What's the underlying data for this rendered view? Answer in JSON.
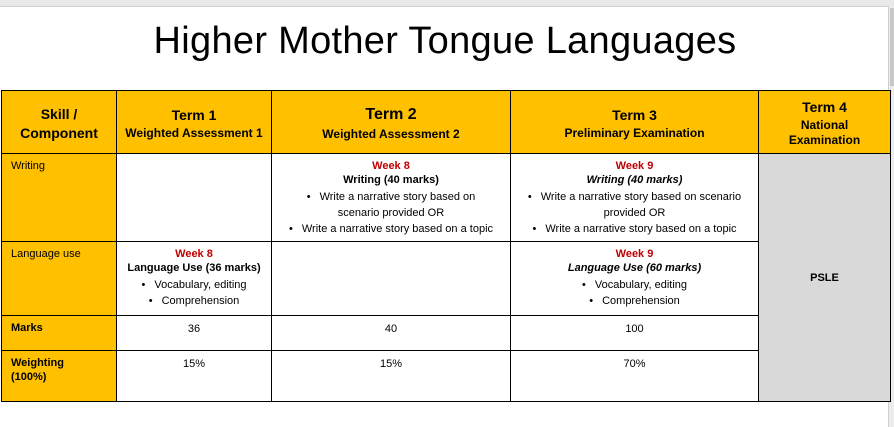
{
  "title": "Higher Mother Tongue Languages",
  "header": {
    "skill_line1": "Skill /",
    "skill_line2": "Component",
    "term1": {
      "label": "Term 1",
      "sub": "Weighted Assessment 1"
    },
    "term2": {
      "label": "Term 2",
      "sub": "Weighted Assessment 2"
    },
    "term3": {
      "label": "Term 3",
      "sub": "Preliminary Examination"
    },
    "term4": {
      "label": "Term 4",
      "sub_line1": "National",
      "sub_line2": "Examination"
    }
  },
  "rows": {
    "writing": {
      "label": "Writing",
      "term2": {
        "week": "Week 8",
        "title": "Writing (40 marks)",
        "items": [
          "Write a narrative story based on",
          "scenario provided OR",
          "Write a narrative story based on a topic"
        ]
      },
      "term3": {
        "week": "Week 9",
        "title": "Writing (40 marks)",
        "items": [
          "Write a narrative story based on scenario",
          "provided OR",
          "Write a narrative story based on a topic"
        ]
      }
    },
    "language_use": {
      "label": "Language use",
      "term1": {
        "week": "Week 8",
        "title": "Language Use  (36 marks)",
        "items": [
          "Vocabulary, editing",
          "Comprehension"
        ]
      },
      "term3": {
        "week": "Week 9",
        "title": "Language Use (60 marks)",
        "items": [
          "Vocabulary, editing",
          "Comprehension"
        ]
      }
    },
    "marks": {
      "label": "Marks",
      "term1": "36",
      "term2": "40",
      "term3": "100"
    },
    "weighting": {
      "label_line1": "Weighting",
      "label_line2": "(100%)",
      "term1": "15%",
      "term2": "15%",
      "term3": "70%"
    },
    "term4_value": "PSLE"
  },
  "colors": {
    "header_bg": "#ffc000",
    "psle_bg": "#d9d9d9",
    "week_text": "#c00000"
  }
}
